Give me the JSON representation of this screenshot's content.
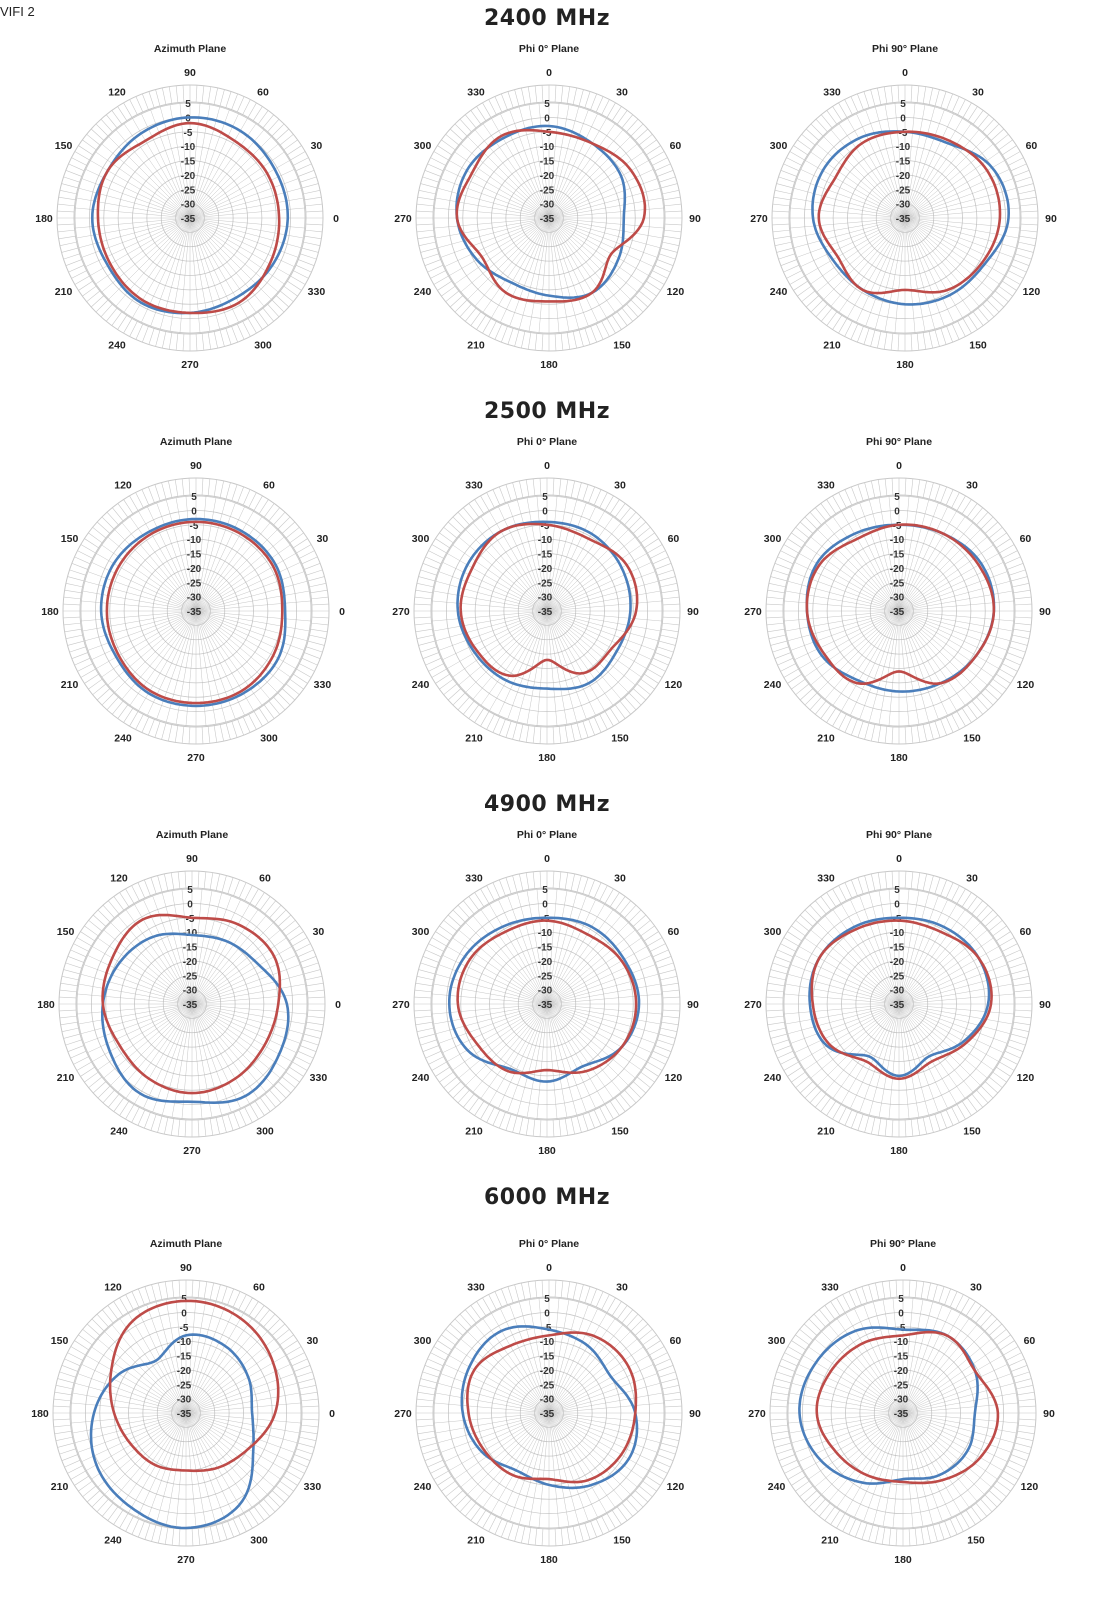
{
  "page": {
    "label": "VIFI 2"
  },
  "colors": {
    "series_blue": "#4a7ebb",
    "series_red": "#be4b48",
    "grid": "#c8c8c8",
    "spoke": "#b4b4b4"
  },
  "chart_data": [
    {
      "group": "2400 MHz",
      "title": "Azimuth Plane",
      "type": "polar",
      "rlim": [
        -35,
        5
      ],
      "rticks": [
        5,
        0,
        -5,
        -10,
        -15,
        -20,
        -25,
        -30,
        -35
      ],
      "angle_labels": [
        "90",
        "60",
        "30",
        "0",
        "330",
        "300",
        "270",
        "240",
        "210",
        "180",
        "150",
        "120"
      ],
      "label_origin": 90,
      "direction": "cw",
      "series": [
        {
          "color": "blue",
          "values": [
            0,
            0,
            -1,
            -1,
            -2,
            -3,
            -2,
            -1,
            -2,
            -1,
            -2,
            -1
          ]
        },
        {
          "color": "red",
          "values": [
            -2,
            -4,
            -4,
            -4,
            -3,
            -1,
            -2,
            -2,
            -3,
            -3,
            -2,
            -4
          ]
        }
      ]
    },
    {
      "group": "2400 MHz",
      "title": "Phi 0° Plane",
      "type": "polar",
      "rlim": [
        -35,
        5
      ],
      "rticks": [
        5,
        0,
        -5,
        -10,
        -15,
        -20,
        -25,
        -30,
        -35
      ],
      "angle_labels": [
        "0",
        "30",
        "60",
        "90",
        "120",
        "150",
        "180",
        "210",
        "240",
        "270",
        "300",
        "330"
      ],
      "label_origin": 0,
      "direction": "cw",
      "series": [
        {
          "color": "blue",
          "values": [
            -3,
            -5,
            -6,
            -9,
            -7,
            -5,
            -8,
            -9,
            -6,
            -3,
            -2,
            -3
          ]
        },
        {
          "color": "red",
          "values": [
            -5,
            -5,
            -2,
            -2,
            -10,
            -5,
            -6,
            -5,
            -8,
            -3,
            -4,
            -2
          ]
        }
      ]
    },
    {
      "group": "2400 MHz",
      "title": "Phi 90° Plane",
      "type": "polar",
      "rlim": [
        -35,
        5
      ],
      "rticks": [
        5,
        0,
        -5,
        -10,
        -15,
        -20,
        -25,
        -30,
        -35
      ],
      "angle_labels": [
        "0",
        "30",
        "60",
        "90",
        "120",
        "150",
        "180",
        "210",
        "240",
        "270",
        "300",
        "330"
      ],
      "label_origin": 0,
      "direction": "cw",
      "series": [
        {
          "color": "blue",
          "values": [
            -5,
            -5,
            0,
            1,
            -3,
            -4,
            -5,
            -6,
            -6,
            -3,
            -2,
            -3
          ]
        },
        {
          "color": "red",
          "values": [
            -5,
            -4,
            -2,
            -2,
            -4,
            -6,
            -10,
            -6,
            -8,
            -5,
            -7,
            -5
          ]
        }
      ]
    },
    {
      "group": "2500 MHz",
      "title": "Azimuth Plane",
      "type": "polar",
      "rlim": [
        -35,
        5
      ],
      "rticks": [
        5,
        0,
        -5,
        -10,
        -15,
        -20,
        -25,
        -30,
        -35
      ],
      "angle_labels": [
        "90",
        "60",
        "30",
        "0",
        "330",
        "300",
        "270",
        "240",
        "210",
        "180",
        "150",
        "120"
      ],
      "label_origin": 90,
      "direction": "cw",
      "series": [
        {
          "color": "blue",
          "values": [
            -3,
            -3,
            -3,
            -4,
            -2,
            -2,
            -2,
            -2,
            -3,
            -2,
            -2,
            -3
          ]
        },
        {
          "color": "red",
          "values": [
            -4,
            -4,
            -4,
            -5,
            -4,
            -3,
            -3,
            -3,
            -4,
            -4,
            -4,
            -4
          ]
        }
      ]
    },
    {
      "group": "2500 MHz",
      "title": "Phi 0° Plane",
      "type": "polar",
      "rlim": [
        -35,
        5
      ],
      "rticks": [
        5,
        0,
        -5,
        -10,
        -15,
        -20,
        -25,
        -30,
        -35
      ],
      "angle_labels": [
        "0",
        "30",
        "60",
        "90",
        "120",
        "150",
        "180",
        "210",
        "240",
        "270",
        "300",
        "330"
      ],
      "label_origin": 0,
      "direction": "cw",
      "series": [
        {
          "color": "blue",
          "values": [
            -4,
            -4,
            -5,
            -6,
            -7,
            -6,
            -8,
            -7,
            -6,
            -4,
            -3,
            -3
          ]
        },
        {
          "color": "red",
          "values": [
            -5,
            -6,
            -3,
            -4,
            -9,
            -10,
            -18,
            -9,
            -7,
            -5,
            -5,
            -3
          ]
        }
      ]
    },
    {
      "group": "2500 MHz",
      "title": "Phi 90° Plane",
      "type": "polar",
      "rlim": [
        -35,
        5
      ],
      "rticks": [
        5,
        0,
        -5,
        -10,
        -15,
        -20,
        -25,
        -30,
        -35
      ],
      "angle_labels": [
        "0",
        "30",
        "60",
        "90",
        "120",
        "150",
        "180",
        "210",
        "240",
        "270",
        "300",
        "330"
      ],
      "label_origin": 0,
      "direction": "cw",
      "series": [
        {
          "color": "blue",
          "values": [
            -5,
            -4,
            -2,
            -2,
            -4,
            -6,
            -7,
            -7,
            -4,
            -3,
            -2,
            -4
          ]
        },
        {
          "color": "red",
          "values": [
            -5,
            -4,
            -3,
            -2,
            -4,
            -6,
            -14,
            -6,
            -5,
            -3,
            -3,
            -6
          ]
        }
      ]
    },
    {
      "group": "4900 MHz",
      "title": "Azimuth Plane",
      "type": "polar",
      "rlim": [
        -35,
        5
      ],
      "rticks": [
        5,
        0,
        -5,
        -10,
        -15,
        -20,
        -25,
        -30,
        -35
      ],
      "angle_labels": [
        "90",
        "60",
        "30",
        "0",
        "330",
        "300",
        "270",
        "240",
        "210",
        "180",
        "150",
        "120"
      ],
      "label_origin": 90,
      "direction": "cw",
      "series": [
        {
          "color": "blue",
          "values": [
            -11,
            -10,
            -8,
            -2,
            0,
            2,
            -1,
            1,
            -2,
            -4,
            -6,
            -8
          ]
        },
        {
          "color": "red",
          "values": [
            -5,
            -3,
            -2,
            -5,
            -6,
            -5,
            -4,
            -5,
            -6,
            -4,
            -3,
            -1
          ]
        }
      ]
    },
    {
      "group": "4900 MHz",
      "title": "Phi 0° Plane",
      "type": "polar",
      "rlim": [
        -35,
        5
      ],
      "rticks": [
        5,
        0,
        -5,
        -10,
        -15,
        -20,
        -25,
        -30,
        -35
      ],
      "angle_labels": [
        "0",
        "30",
        "60",
        "90",
        "120",
        "150",
        "180",
        "210",
        "240",
        "270",
        "300",
        "330"
      ],
      "label_origin": 0,
      "direction": "cw",
      "series": [
        {
          "color": "blue",
          "values": [
            -5,
            -4,
            -4,
            -3,
            -5,
            -10,
            -8,
            -9,
            -3,
            -1,
            -2,
            -4
          ]
        },
        {
          "color": "red",
          "values": [
            -6,
            -7,
            -5,
            -4,
            -5,
            -8,
            -12,
            -8,
            -7,
            -4,
            -4,
            -6
          ]
        }
      ]
    },
    {
      "group": "4900 MHz",
      "title": "Phi 90° Plane",
      "type": "polar",
      "rlim": [
        -35,
        5
      ],
      "rticks": [
        5,
        0,
        -5,
        -10,
        -15,
        -20,
        -25,
        -30,
        -35
      ],
      "angle_labels": [
        "0",
        "30",
        "60",
        "90",
        "120",
        "150",
        "180",
        "210",
        "240",
        "270",
        "300",
        "330"
      ],
      "label_origin": 0,
      "direction": "cw",
      "series": [
        {
          "color": "blue",
          "values": [
            -5,
            -4,
            -3,
            -4,
            -9,
            -14,
            -10,
            -14,
            -6,
            -4,
            -3,
            -4
          ]
        },
        {
          "color": "red",
          "values": [
            -6,
            -6,
            -3,
            -3,
            -8,
            -12,
            -9,
            -12,
            -7,
            -5,
            -3,
            -5
          ]
        }
      ]
    },
    {
      "group": "6000 MHz",
      "title": "Azimuth Plane",
      "type": "polar",
      "rlim": [
        -35,
        5
      ],
      "rticks": [
        5,
        0,
        -5,
        -10,
        -15,
        -20,
        -25,
        -30,
        -35
      ],
      "angle_labels": [
        "90",
        "60",
        "30",
        "0",
        "330",
        "300",
        "270",
        "240",
        "210",
        "180",
        "150",
        "120"
      ],
      "label_origin": 90,
      "direction": "cw",
      "series": [
        {
          "color": "blue",
          "values": [
            -8,
            -8,
            -10,
            -12,
            -8,
            2,
            5,
            3,
            1,
            -3,
            -8,
            -14
          ]
        },
        {
          "color": "red",
          "values": [
            4,
            3,
            0,
            -4,
            -10,
            -13,
            -15,
            -14,
            -13,
            -10,
            -5,
            2
          ]
        }
      ]
    },
    {
      "group": "6000 MHz",
      "title": "Phi 0° Plane",
      "type": "polar",
      "rlim": [
        -35,
        5
      ],
      "rticks": [
        5,
        0,
        -5,
        -10,
        -15,
        -20,
        -25,
        -30,
        -35
      ],
      "angle_labels": [
        "0",
        "30",
        "60",
        "90",
        "120",
        "150",
        "180",
        "210",
        "240",
        "270",
        "300",
        "330"
      ],
      "label_origin": 0,
      "direction": "cw",
      "series": [
        {
          "color": "blue",
          "values": [
            -6,
            -8,
            -10,
            -5,
            -3,
            -6,
            -10,
            -12,
            -8,
            -5,
            -3,
            -2
          ]
        },
        {
          "color": "red",
          "values": [
            -8,
            -4,
            -3,
            -5,
            -6,
            -8,
            -12,
            -10,
            -9,
            -7,
            -5,
            -8
          ]
        }
      ]
    },
    {
      "group": "6000 MHz",
      "title": "Phi 90° Plane",
      "type": "polar",
      "rlim": [
        -35,
        5
      ],
      "rticks": [
        5,
        0,
        -5,
        -10,
        -15,
        -20,
        -25,
        -30,
        -35
      ],
      "angle_labels": [
        "0",
        "30",
        "60",
        "90",
        "120",
        "150",
        "180",
        "210",
        "240",
        "270",
        "300",
        "330"
      ],
      "label_origin": 0,
      "direction": "cw",
      "series": [
        {
          "color": "blue",
          "values": [
            -6,
            -4,
            -6,
            -10,
            -9,
            -10,
            -12,
            -7,
            -2,
            1,
            0,
            -2
          ]
        },
        {
          "color": "red",
          "values": [
            -8,
            -4,
            -6,
            -2,
            -4,
            -8,
            -11,
            -10,
            -8,
            -5,
            -6,
            -7
          ]
        }
      ]
    }
  ],
  "groups": [
    "2400 MHz",
    "2500 MHz",
    "4900 MHz",
    "6000 MHz"
  ]
}
